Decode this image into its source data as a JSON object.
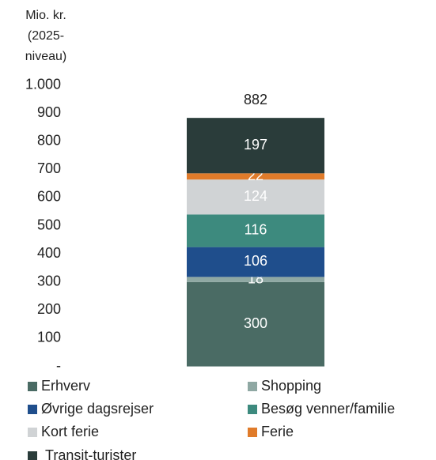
{
  "chart_data": {
    "type": "stacked_bar",
    "ylabel_lines": [
      "Mio. kr.",
      "(2025-",
      "niveau)"
    ],
    "categories": [
      null
    ],
    "ylim": [
      0,
      1000
    ],
    "yticks": [
      {
        "value": 0,
        "label": "-"
      },
      100,
      200,
      300,
      400,
      500,
      600,
      700,
      800,
      900,
      {
        "value": 1000,
        "label": "1.000"
      }
    ],
    "totals": [
      882
    ],
    "series": [
      {
        "name": "Erhverv",
        "color": "#4a6b64",
        "values": [
          300
        ]
      },
      {
        "name": "Shopping",
        "color": "#8fa8a3",
        "values": [
          18
        ]
      },
      {
        "name": "Øvrige dagsrejser",
        "color": "#1f4e8c",
        "values": [
          106
        ]
      },
      {
        "name": "Besøg venner/familie",
        "color": "#3d8a7e",
        "values": [
          116
        ]
      },
      {
        "name": "Kort ferie",
        "color": "#d0d3d5",
        "values": [
          124
        ]
      },
      {
        "name": "Ferie",
        "color": "#e07b2a",
        "values": [
          22
        ]
      },
      {
        "name": "Transit-turister",
        "color": "#2a3c3a",
        "values": [
          197
        ]
      }
    ]
  }
}
